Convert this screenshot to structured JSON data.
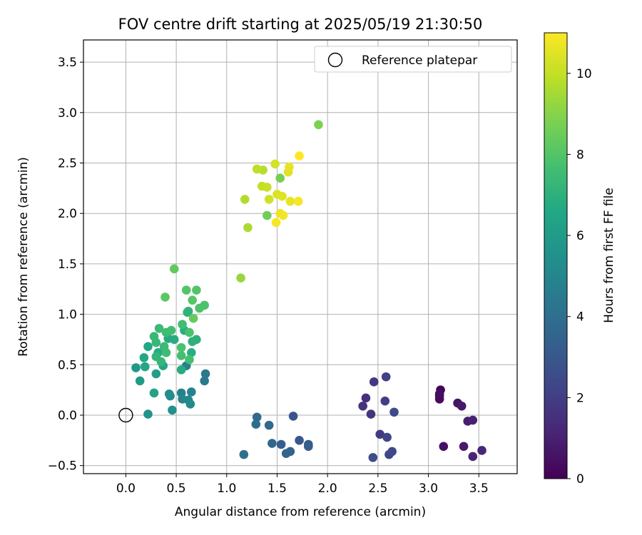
{
  "chart_data": {
    "type": "scatter",
    "title": "FOV centre drift starting at 2025/05/19 21:30:50",
    "xlabel": "Angular distance from reference (arcmin)",
    "ylabel": "Rotation from reference (arcmin)",
    "xlim": [
      -0.42,
      3.88
    ],
    "ylim": [
      -0.58,
      3.72
    ],
    "x_ticks": [
      0.0,
      0.5,
      1.0,
      1.5,
      2.0,
      2.5,
      3.0,
      3.5
    ],
    "x_tick_labels": [
      "0.0",
      "0.5",
      "1.0",
      "1.5",
      "2.0",
      "2.5",
      "3.0",
      "3.5"
    ],
    "y_ticks": [
      -0.5,
      0.0,
      0.5,
      1.0,
      1.5,
      2.0,
      2.5,
      3.0,
      3.5
    ],
    "y_tick_labels": [
      "−0.5",
      "0.0",
      "0.5",
      "1.0",
      "1.5",
      "2.0",
      "2.5",
      "3.0",
      "3.5"
    ],
    "grid": true,
    "colormap": "viridis",
    "colorbar": {
      "label": "Hours from first FF file",
      "range": [
        0,
        11
      ],
      "ticks": [
        0,
        2,
        4,
        6,
        8,
        10
      ],
      "tick_labels": [
        "0",
        "2",
        "4",
        "6",
        "8",
        "10"
      ]
    },
    "legend": {
      "position": "top-right",
      "entries": [
        "Reference platepar"
      ]
    },
    "reference_point": {
      "x": 0.0,
      "y": 0.0,
      "marker": "open-circle"
    },
    "points": [
      {
        "x": 3.12,
        "y": 0.25,
        "c": 0.1
      },
      {
        "x": 3.11,
        "y": 0.19,
        "c": 0.2
      },
      {
        "x": 3.11,
        "y": 0.16,
        "c": 0.3
      },
      {
        "x": 3.11,
        "y": 0.21,
        "c": 0.4
      },
      {
        "x": 3.15,
        "y": -0.31,
        "c": 0.5
      },
      {
        "x": 3.29,
        "y": 0.12,
        "c": 0.6
      },
      {
        "x": 3.33,
        "y": 0.09,
        "c": 0.7
      },
      {
        "x": 3.35,
        "y": -0.31,
        "c": 0.8
      },
      {
        "x": 3.39,
        "y": -0.06,
        "c": 0.9
      },
      {
        "x": 3.44,
        "y": -0.05,
        "c": 1.0
      },
      {
        "x": 3.44,
        "y": -0.41,
        "c": 1.1
      },
      {
        "x": 3.53,
        "y": -0.35,
        "c": 1.2
      },
      {
        "x": 2.38,
        "y": 0.17,
        "c": 1.5
      },
      {
        "x": 2.35,
        "y": 0.09,
        "c": 1.6
      },
      {
        "x": 2.43,
        "y": 0.01,
        "c": 1.7
      },
      {
        "x": 2.46,
        "y": 0.33,
        "c": 1.8
      },
      {
        "x": 2.52,
        "y": -0.19,
        "c": 1.9
      },
      {
        "x": 2.57,
        "y": 0.14,
        "c": 2.0
      },
      {
        "x": 2.58,
        "y": 0.38,
        "c": 2.1
      },
      {
        "x": 2.59,
        "y": -0.22,
        "c": 2.2
      },
      {
        "x": 2.61,
        "y": -0.39,
        "c": 2.3
      },
      {
        "x": 2.64,
        "y": -0.36,
        "c": 2.4
      },
      {
        "x": 2.66,
        "y": 0.03,
        "c": 2.5
      },
      {
        "x": 2.45,
        "y": -0.42,
        "c": 2.6
      },
      {
        "x": 1.66,
        "y": -0.01,
        "c": 2.9
      },
      {
        "x": 1.72,
        "y": -0.25,
        "c": 3.0
      },
      {
        "x": 1.81,
        "y": -0.29,
        "c": 3.1
      },
      {
        "x": 1.81,
        "y": -0.31,
        "c": 3.2
      },
      {
        "x": 1.54,
        "y": -0.29,
        "c": 3.3
      },
      {
        "x": 1.63,
        "y": -0.36,
        "c": 3.4
      },
      {
        "x": 1.59,
        "y": -0.38,
        "c": 3.5
      },
      {
        "x": 1.45,
        "y": -0.28,
        "c": 3.6
      },
      {
        "x": 1.42,
        "y": -0.1,
        "c": 3.7
      },
      {
        "x": 1.3,
        "y": -0.02,
        "c": 3.8
      },
      {
        "x": 1.29,
        "y": -0.09,
        "c": 3.9
      },
      {
        "x": 1.17,
        "y": -0.39,
        "c": 4.0
      },
      {
        "x": 0.79,
        "y": 0.41,
        "c": 4.4
      },
      {
        "x": 0.78,
        "y": 0.34,
        "c": 4.5
      },
      {
        "x": 0.6,
        "y": 0.49,
        "c": 4.7
      },
      {
        "x": 0.55,
        "y": 0.22,
        "c": 4.8
      },
      {
        "x": 0.65,
        "y": 0.23,
        "c": 4.9
      },
      {
        "x": 0.56,
        "y": 0.16,
        "c": 5.0
      },
      {
        "x": 0.62,
        "y": 0.15,
        "c": 5.1
      },
      {
        "x": 0.64,
        "y": 0.11,
        "c": 5.2
      },
      {
        "x": 0.44,
        "y": 0.19,
        "c": 5.3
      },
      {
        "x": 0.43,
        "y": 0.21,
        "c": 5.4
      },
      {
        "x": 0.46,
        "y": 0.05,
        "c": 5.5
      },
      {
        "x": 0.22,
        "y": 0.01,
        "c": 5.6
      },
      {
        "x": 0.1,
        "y": 0.47,
        "c": 5.8
      },
      {
        "x": 0.14,
        "y": 0.34,
        "c": 6.0
      },
      {
        "x": 0.3,
        "y": 0.41,
        "c": 6.1
      },
      {
        "x": 0.28,
        "y": 0.22,
        "c": 6.3
      },
      {
        "x": 0.37,
        "y": 0.49,
        "c": 6.4
      },
      {
        "x": 0.19,
        "y": 0.48,
        "c": 6.5
      },
      {
        "x": 0.18,
        "y": 0.57,
        "c": 6.6
      },
      {
        "x": 0.22,
        "y": 0.68,
        "c": 6.6
      },
      {
        "x": 0.32,
        "y": 0.62,
        "c": 6.7
      },
      {
        "x": 0.42,
        "y": 0.76,
        "c": 6.7
      },
      {
        "x": 0.48,
        "y": 0.75,
        "c": 6.8
      },
      {
        "x": 0.55,
        "y": 0.45,
        "c": 6.8
      },
      {
        "x": 0.65,
        "y": 0.62,
        "c": 6.9
      },
      {
        "x": 0.58,
        "y": 0.84,
        "c": 6.9
      },
      {
        "x": 0.66,
        "y": 0.73,
        "c": 7.0
      },
      {
        "x": 0.7,
        "y": 0.75,
        "c": 7.0
      },
      {
        "x": 0.61,
        "y": 1.02,
        "c": 7.1
      },
      {
        "x": 0.62,
        "y": 1.03,
        "c": 7.1
      },
      {
        "x": 0.35,
        "y": 0.53,
        "c": 7.2
      },
      {
        "x": 0.3,
        "y": 0.58,
        "c": 7.2
      },
      {
        "x": 0.3,
        "y": 0.72,
        "c": 7.3
      },
      {
        "x": 0.28,
        "y": 0.78,
        "c": 7.3
      },
      {
        "x": 0.33,
        "y": 0.86,
        "c": 7.4
      },
      {
        "x": 0.38,
        "y": 0.68,
        "c": 7.4
      },
      {
        "x": 0.4,
        "y": 0.62,
        "c": 7.5
      },
      {
        "x": 0.4,
        "y": 0.82,
        "c": 7.5
      },
      {
        "x": 0.45,
        "y": 0.84,
        "c": 7.6
      },
      {
        "x": 0.56,
        "y": 0.9,
        "c": 7.6
      },
      {
        "x": 0.55,
        "y": 0.59,
        "c": 7.7
      },
      {
        "x": 0.63,
        "y": 0.55,
        "c": 7.7
      },
      {
        "x": 0.55,
        "y": 0.67,
        "c": 7.8
      },
      {
        "x": 0.63,
        "y": 0.82,
        "c": 7.8
      },
      {
        "x": 0.73,
        "y": 1.06,
        "c": 7.9
      },
      {
        "x": 0.78,
        "y": 1.09,
        "c": 7.9
      },
      {
        "x": 0.7,
        "y": 1.24,
        "c": 8.0
      },
      {
        "x": 0.6,
        "y": 1.24,
        "c": 8.0
      },
      {
        "x": 0.66,
        "y": 1.14,
        "c": 8.1
      },
      {
        "x": 0.39,
        "y": 1.17,
        "c": 8.2
      },
      {
        "x": 0.48,
        "y": 1.45,
        "c": 8.3
      },
      {
        "x": 0.67,
        "y": 0.96,
        "c": 8.4
      },
      {
        "x": 1.4,
        "y": 1.98,
        "c": 8.6
      },
      {
        "x": 1.53,
        "y": 2.35,
        "c": 8.7
      },
      {
        "x": 1.91,
        "y": 2.88,
        "c": 8.8
      },
      {
        "x": 1.14,
        "y": 1.36,
        "c": 9.3
      },
      {
        "x": 1.21,
        "y": 1.86,
        "c": 9.6
      },
      {
        "x": 1.18,
        "y": 2.14,
        "c": 9.7
      },
      {
        "x": 1.36,
        "y": 2.43,
        "c": 9.8
      },
      {
        "x": 1.3,
        "y": 2.44,
        "c": 9.9
      },
      {
        "x": 1.35,
        "y": 2.27,
        "c": 10.0
      },
      {
        "x": 1.4,
        "y": 2.26,
        "c": 10.1
      },
      {
        "x": 1.42,
        "y": 2.14,
        "c": 10.2
      },
      {
        "x": 1.48,
        "y": 2.49,
        "c": 10.3
      },
      {
        "x": 1.5,
        "y": 2.19,
        "c": 10.4
      },
      {
        "x": 1.55,
        "y": 2.17,
        "c": 10.5
      },
      {
        "x": 1.61,
        "y": 2.41,
        "c": 10.5
      },
      {
        "x": 1.62,
        "y": 2.46,
        "c": 10.6
      },
      {
        "x": 1.63,
        "y": 2.12,
        "c": 10.6
      },
      {
        "x": 1.53,
        "y": 2.0,
        "c": 10.7
      },
      {
        "x": 1.56,
        "y": 1.98,
        "c": 10.8
      },
      {
        "x": 1.49,
        "y": 1.91,
        "c": 10.9
      },
      {
        "x": 1.71,
        "y": 2.12,
        "c": 10.9
      },
      {
        "x": 1.72,
        "y": 2.57,
        "c": 11.0
      }
    ]
  }
}
